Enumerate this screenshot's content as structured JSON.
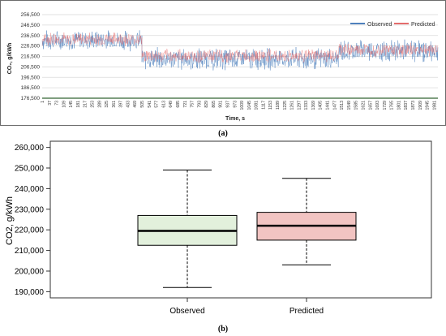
{
  "panels": {
    "a_label": "(a)",
    "b_label": "(b)"
  },
  "colors": {
    "observed_line": "#4f81bd",
    "predicted_line": "#e46c6c",
    "frame": "#6b6b6b",
    "grid": "#d9d9d9",
    "observed_box_fill": "#e2f0dc",
    "predicted_box_fill": "#f2c4c2",
    "median": "#000000"
  },
  "chart_data": [
    {
      "type": "line",
      "xlabel": "Time, s",
      "ylabel": "CO₂, g/kWh",
      "ylim": [
        176500,
        256500
      ],
      "yticks": [
        "256,500",
        "246,500",
        "236,500",
        "226,500",
        "216,500",
        "206,500",
        "196,500",
        "186,500",
        "176,500"
      ],
      "yticks_values": [
        256500,
        246500,
        236500,
        226500,
        216500,
        206500,
        196500,
        186500,
        176500
      ],
      "xlim": [
        1,
        2000
      ],
      "xticks": [
        "1",
        "37",
        "73",
        "109",
        "145",
        "181",
        "217",
        "253",
        "289",
        "325",
        "361",
        "397",
        "433",
        "469",
        "505",
        "541",
        "577",
        "613",
        "649",
        "685",
        "721",
        "757",
        "793",
        "829",
        "865",
        "901",
        "937",
        "973",
        "1009",
        "1045",
        "1081",
        "1117",
        "1153",
        "1189",
        "1225",
        "1261",
        "1297",
        "1333",
        "1369",
        "1405",
        "1441",
        "1477",
        "1513",
        "1549",
        "1585",
        "1621",
        "1657",
        "1693",
        "1729",
        "1765",
        "1801",
        "1837",
        "1873",
        "1909",
        "1945",
        "1981"
      ],
      "legend_position": "top-right",
      "grid": true,
      "series": [
        {
          "name": "Observed",
          "segments": [
            {
              "x_start": 1,
              "x_end": 505,
              "mean": 232000,
              "amplitude": 9000
            },
            {
              "x_start": 505,
              "x_end": 1500,
              "mean": 214000,
              "amplitude": 10000
            },
            {
              "x_start": 1500,
              "x_end": 2000,
              "mean": 222000,
              "amplitude": 10000
            }
          ]
        },
        {
          "name": "Predicted",
          "segments": [
            {
              "x_start": 1,
              "x_end": 505,
              "mean": 233000,
              "amplitude": 6000
            },
            {
              "x_start": 505,
              "x_end": 1500,
              "mean": 217000,
              "amplitude": 6000
            },
            {
              "x_start": 1500,
              "x_end": 2000,
              "mean": 223000,
              "amplitude": 6000
            }
          ]
        }
      ]
    },
    {
      "type": "box",
      "ylabel": "CO2, g/kWh",
      "ylim": [
        187000,
        263000
      ],
      "yticks": [
        "190,000",
        "200,000",
        "210,000",
        "220,000",
        "230,000",
        "240,000",
        "250,000",
        "260,000"
      ],
      "yticks_values": [
        190000,
        200000,
        210000,
        220000,
        230000,
        240000,
        250000,
        260000
      ],
      "categories": [
        "Observed",
        "Predicted"
      ],
      "boxes": [
        {
          "name": "Observed",
          "min": 192000,
          "q1": 212500,
          "median": 219500,
          "q3": 227000,
          "max": 249000
        },
        {
          "name": "Predicted",
          "min": 203000,
          "q1": 215000,
          "median": 222000,
          "q3": 228500,
          "max": 245000
        }
      ]
    }
  ]
}
